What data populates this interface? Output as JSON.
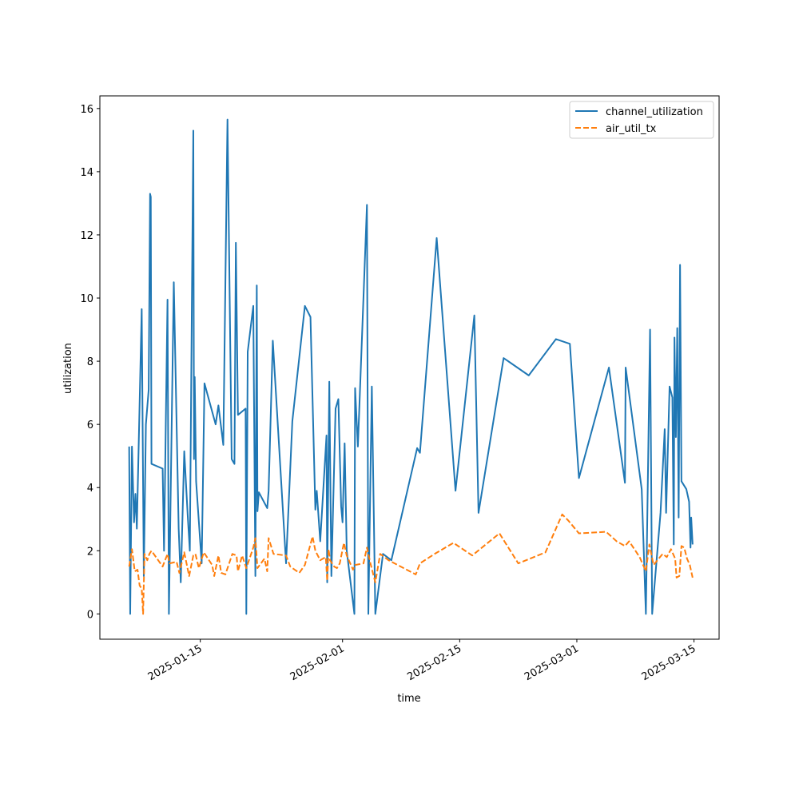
{
  "chart_data": {
    "type": "line",
    "xlabel": "time",
    "ylabel": "utilization",
    "x_type": "date",
    "xlim": [
      "2025-01-03",
      "2025-03-18"
    ],
    "ylim": [
      -0.8,
      16.4
    ],
    "y_ticks": [
      0,
      2,
      4,
      6,
      8,
      10,
      12,
      14,
      16
    ],
    "x_ticks": [
      "2025-01-15",
      "2025-02-01",
      "2025-02-15",
      "2025-03-01",
      "2025-03-15"
    ],
    "grid": false,
    "legend_position": "top-right",
    "series": [
      {
        "name": "channel_utilization",
        "color": "#1f77b4",
        "dash": "solid",
        "points": [
          [
            "2025-01-06T12:00",
            5.3
          ],
          [
            "2025-01-06T15:00",
            0.0
          ],
          [
            "2025-01-06T20:00",
            5.3
          ],
          [
            "2025-01-07T02:00",
            2.9
          ],
          [
            "2025-01-07T06:00",
            3.8
          ],
          [
            "2025-01-07T10:00",
            2.7
          ],
          [
            "2025-01-08T00:00",
            9.65
          ],
          [
            "2025-01-08T06:00",
            1.2
          ],
          [
            "2025-01-08T12:00",
            6.0
          ],
          [
            "2025-01-08T20:00",
            7.1
          ],
          [
            "2025-01-09T00:00",
            13.3
          ],
          [
            "2025-01-09T02:00",
            13.2
          ],
          [
            "2025-01-09T04:00",
            4.75
          ],
          [
            "2025-01-10T12:00",
            4.6
          ],
          [
            "2025-01-10T16:00",
            2.0
          ],
          [
            "2025-01-11T02:00",
            9.95
          ],
          [
            "2025-01-11T06:00",
            0.0
          ],
          [
            "2025-01-11T20:00",
            10.5
          ],
          [
            "2025-01-12T10:00",
            2.7
          ],
          [
            "2025-01-12T16:00",
            1.0
          ],
          [
            "2025-01-13T02:00",
            5.15
          ],
          [
            "2025-01-13T12:00",
            3.1
          ],
          [
            "2025-01-13T18:00",
            2.0
          ],
          [
            "2025-01-14T04:00",
            15.3
          ],
          [
            "2025-01-14T06:00",
            4.9
          ],
          [
            "2025-01-14T08:00",
            7.5
          ],
          [
            "2025-01-14T12:00",
            4.2
          ],
          [
            "2025-01-15T04:00",
            1.6
          ],
          [
            "2025-01-15T12:00",
            7.3
          ],
          [
            "2025-01-16T20:00",
            6.0
          ],
          [
            "2025-01-17T04:00",
            6.6
          ],
          [
            "2025-01-17T18:00",
            5.35
          ],
          [
            "2025-01-18T06:00",
            15.65
          ],
          [
            "2025-01-18T18:00",
            4.9
          ],
          [
            "2025-01-19T02:00",
            4.75
          ],
          [
            "2025-01-19T06:00",
            11.75
          ],
          [
            "2025-01-19T12:00",
            6.3
          ],
          [
            "2025-01-20T10:00",
            6.5
          ],
          [
            "2025-01-20T12:00",
            0.0
          ],
          [
            "2025-01-20T16:00",
            8.3
          ],
          [
            "2025-01-21T08:00",
            9.75
          ],
          [
            "2025-01-21T14:00",
            1.2
          ],
          [
            "2025-01-21T18:00",
            10.4
          ],
          [
            "2025-01-21T20:00",
            3.25
          ],
          [
            "2025-01-22T00:00",
            3.85
          ],
          [
            "2025-01-23T00:00",
            3.35
          ],
          [
            "2025-01-23T04:00",
            3.9
          ],
          [
            "2025-01-23T16:00",
            8.65
          ],
          [
            "2025-01-25T06:00",
            1.6
          ],
          [
            "2025-01-26T00:00",
            6.1
          ],
          [
            "2025-01-27T12:00",
            9.75
          ],
          [
            "2025-01-28T04:00",
            9.4
          ],
          [
            "2025-01-28T18:00",
            3.3
          ],
          [
            "2025-01-28T22:00",
            3.9
          ],
          [
            "2025-01-29T08:00",
            2.3
          ],
          [
            "2025-01-30T02:00",
            5.65
          ],
          [
            "2025-01-30T04:00",
            1.0
          ],
          [
            "2025-01-30T10:00",
            7.35
          ],
          [
            "2025-01-30T16:00",
            1.2
          ],
          [
            "2025-01-31T04:00",
            6.5
          ],
          [
            "2025-01-31T12:00",
            6.8
          ],
          [
            "2025-01-31T20:00",
            3.4
          ],
          [
            "2025-02-01T00:00",
            2.9
          ],
          [
            "2025-02-01T06:00",
            5.4
          ],
          [
            "2025-02-01T12:00",
            2.0
          ],
          [
            "2025-02-02T10:00",
            0.0
          ],
          [
            "2025-02-02T12:00",
            7.15
          ],
          [
            "2025-02-02T20:00",
            5.3
          ],
          [
            "2025-02-03T22:00",
            12.95
          ],
          [
            "2025-02-04T02:00",
            0.0
          ],
          [
            "2025-02-04T12:00",
            7.2
          ],
          [
            "2025-02-04T22:00",
            0.0
          ],
          [
            "2025-02-05T20:00",
            1.9
          ],
          [
            "2025-02-06T20:00",
            1.7
          ],
          [
            "2025-02-09T22:00",
            5.25
          ],
          [
            "2025-02-10T06:00",
            5.1
          ],
          [
            "2025-02-12T06:00",
            11.9
          ],
          [
            "2025-02-14T12:00",
            3.9
          ],
          [
            "2025-02-16T18:00",
            9.45
          ],
          [
            "2025-02-17T06:00",
            3.2
          ],
          [
            "2025-02-20T06:00",
            8.1
          ],
          [
            "2025-02-23T06:00",
            7.55
          ],
          [
            "2025-02-26T12:00",
            8.7
          ],
          [
            "2025-02-28T04:00",
            8.55
          ],
          [
            "2025-03-01T06:00",
            4.3
          ],
          [
            "2025-03-04T20:00",
            7.8
          ],
          [
            "2025-03-06T18:00",
            4.15
          ],
          [
            "2025-03-06T20:00",
            7.8
          ],
          [
            "2025-03-08T18:00",
            3.95
          ],
          [
            "2025-03-09T06:00",
            0.0
          ],
          [
            "2025-03-09T18:00",
            9.0
          ],
          [
            "2025-03-10T00:00",
            0.0
          ],
          [
            "2025-03-11T00:00",
            3.2
          ],
          [
            "2025-03-11T12:00",
            5.85
          ],
          [
            "2025-03-11T16:00",
            3.2
          ],
          [
            "2025-03-12T02:00",
            7.2
          ],
          [
            "2025-03-12T10:00",
            6.85
          ],
          [
            "2025-03-12T14:00",
            2.2
          ],
          [
            "2025-03-12T16:00",
            8.75
          ],
          [
            "2025-03-12T20:00",
            5.6
          ],
          [
            "2025-03-13T00:00",
            9.05
          ],
          [
            "2025-03-13T04:00",
            3.05
          ],
          [
            "2025-03-13T08:00",
            11.05
          ],
          [
            "2025-03-13T12:00",
            4.2
          ],
          [
            "2025-03-14T02:00",
            3.95
          ],
          [
            "2025-03-14T10:00",
            3.55
          ],
          [
            "2025-03-14T14:00",
            2.1
          ],
          [
            "2025-03-14T16:00",
            3.05
          ],
          [
            "2025-03-14T20:00",
            2.2
          ]
        ]
      },
      {
        "name": "air_util_tx",
        "color": "#ff7f0e",
        "dash": "dashed",
        "points": [
          [
            "2025-01-06T12:00",
            1.5
          ],
          [
            "2025-01-06T20:00",
            2.05
          ],
          [
            "2025-01-07T04:00",
            1.35
          ],
          [
            "2025-01-07T12:00",
            1.4
          ],
          [
            "2025-01-07T18:00",
            0.9
          ],
          [
            "2025-01-08T00:00",
            0.8
          ],
          [
            "2025-01-08T04:00",
            0.0
          ],
          [
            "2025-01-08T08:00",
            1.9
          ],
          [
            "2025-01-08T16:00",
            1.7
          ],
          [
            "2025-01-08T22:00",
            1.9
          ],
          [
            "2025-01-09T04:00",
            2.0
          ],
          [
            "2025-01-10T12:00",
            1.5
          ],
          [
            "2025-01-11T02:00",
            1.9
          ],
          [
            "2025-01-11T08:00",
            1.6
          ],
          [
            "2025-01-12T04:00",
            1.65
          ],
          [
            "2025-01-12T12:00",
            1.3
          ],
          [
            "2025-01-13T02:00",
            1.95
          ],
          [
            "2025-01-13T16:00",
            1.2
          ],
          [
            "2025-01-14T04:00",
            1.85
          ],
          [
            "2025-01-14T10:00",
            1.9
          ],
          [
            "2025-01-14T20:00",
            1.45
          ],
          [
            "2025-01-15T10:00",
            1.95
          ],
          [
            "2025-01-16T10:00",
            1.55
          ],
          [
            "2025-01-16T16:00",
            1.2
          ],
          [
            "2025-01-17T04:00",
            1.85
          ],
          [
            "2025-01-17T12:00",
            1.3
          ],
          [
            "2025-01-18T00:00",
            1.25
          ],
          [
            "2025-01-18T20:00",
            1.9
          ],
          [
            "2025-01-19T08:00",
            1.85
          ],
          [
            "2025-01-19T12:00",
            1.35
          ],
          [
            "2025-01-20T00:00",
            1.85
          ],
          [
            "2025-01-20T12:00",
            1.45
          ],
          [
            "2025-01-21T08:00",
            2.1
          ],
          [
            "2025-01-21T14:00",
            2.4
          ],
          [
            "2025-01-21T20:00",
            1.45
          ],
          [
            "2025-01-22T16:00",
            1.75
          ],
          [
            "2025-01-23T00:00",
            1.35
          ],
          [
            "2025-01-23T04:00",
            2.4
          ],
          [
            "2025-01-23T18:00",
            1.9
          ],
          [
            "2025-01-25T06:00",
            1.85
          ],
          [
            "2025-01-25T18:00",
            1.5
          ],
          [
            "2025-01-26T20:00",
            1.3
          ],
          [
            "2025-01-27T12:00",
            1.55
          ],
          [
            "2025-01-28T10:00",
            2.45
          ],
          [
            "2025-01-28T18:00",
            2.0
          ],
          [
            "2025-01-29T08:00",
            1.7
          ],
          [
            "2025-01-30T00:00",
            1.8
          ],
          [
            "2025-01-30T04:00",
            1.05
          ],
          [
            "2025-01-30T08:00",
            2.05
          ],
          [
            "2025-01-30T12:00",
            1.7
          ],
          [
            "2025-01-31T00:00",
            1.5
          ],
          [
            "2025-01-31T08:00",
            1.45
          ],
          [
            "2025-01-31T16:00",
            1.6
          ],
          [
            "2025-02-01T04:00",
            2.25
          ],
          [
            "2025-02-01T12:00",
            1.85
          ],
          [
            "2025-02-02T06:00",
            1.4
          ],
          [
            "2025-02-02T12:00",
            1.55
          ],
          [
            "2025-02-03T12:00",
            1.6
          ],
          [
            "2025-02-03T22:00",
            2.1
          ],
          [
            "2025-02-04T08:00",
            1.6
          ],
          [
            "2025-02-04T22:00",
            1.0
          ],
          [
            "2025-02-05T12:00",
            1.9
          ],
          [
            "2025-02-06T12:00",
            1.7
          ],
          [
            "2025-02-09T18:00",
            1.25
          ],
          [
            "2025-02-10T06:00",
            1.6
          ],
          [
            "2025-02-12T00:00",
            1.9
          ],
          [
            "2025-02-14T06:00",
            2.25
          ],
          [
            "2025-02-16T12:00",
            1.85
          ],
          [
            "2025-02-19T18:00",
            2.55
          ],
          [
            "2025-02-22T00:00",
            1.6
          ],
          [
            "2025-02-25T06:00",
            1.95
          ],
          [
            "2025-02-27T06:00",
            3.15
          ],
          [
            "2025-02-28T00:00",
            2.95
          ],
          [
            "2025-03-01T06:00",
            2.55
          ],
          [
            "2025-03-04T12:00",
            2.6
          ],
          [
            "2025-03-05T18:00",
            2.3
          ],
          [
            "2025-03-06T18:00",
            2.15
          ],
          [
            "2025-03-07T06:00",
            2.3
          ],
          [
            "2025-03-08T12:00",
            1.8
          ],
          [
            "2025-03-09T06:00",
            1.35
          ],
          [
            "2025-03-09T16:00",
            2.2
          ],
          [
            "2025-03-10T04:00",
            1.55
          ],
          [
            "2025-03-11T06:00",
            1.9
          ],
          [
            "2025-03-11T18:00",
            1.8
          ],
          [
            "2025-03-12T06:00",
            2.05
          ],
          [
            "2025-03-12T18:00",
            1.75
          ],
          [
            "2025-03-12T22:00",
            1.15
          ],
          [
            "2025-03-13T06:00",
            1.2
          ],
          [
            "2025-03-13T12:00",
            2.15
          ],
          [
            "2025-03-13T20:00",
            2.1
          ],
          [
            "2025-03-14T04:00",
            1.75
          ],
          [
            "2025-03-14T12:00",
            1.55
          ],
          [
            "2025-03-14T20:00",
            1.15
          ]
        ]
      }
    ]
  }
}
